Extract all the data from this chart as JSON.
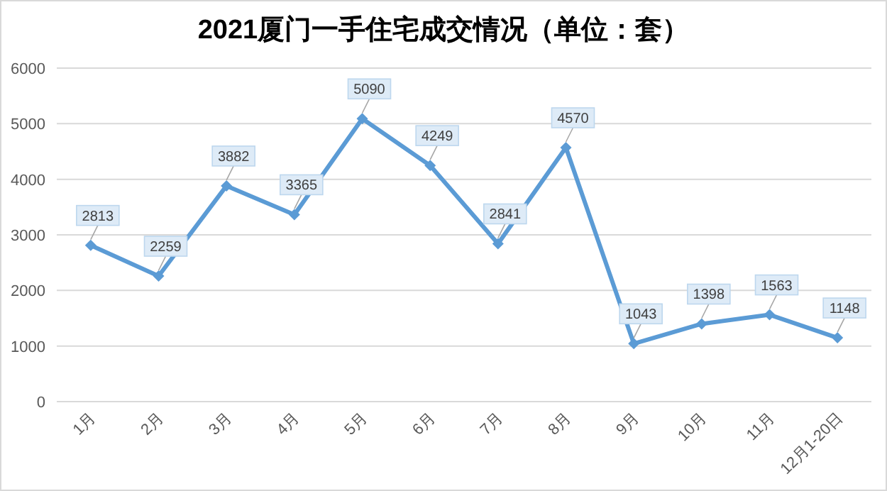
{
  "chart_data": {
    "type": "line",
    "title": "2021厦门一手住宅成交情况（单位：套）",
    "categories": [
      "1月",
      "2月",
      "3月",
      "4月",
      "5月",
      "6月",
      "7月",
      "8月",
      "9月",
      "10月",
      "11月",
      "12月1-20日"
    ],
    "series": [
      {
        "color": "#5b9bd5",
        "values": [
          2813,
          2259,
          3882,
          3365,
          5090,
          4249,
          2841,
          4570,
          1043,
          1398,
          1563,
          1148
        ]
      }
    ],
    "ylim": [
      0,
      6000
    ],
    "yticks": [
      0,
      1000,
      2000,
      3000,
      4000,
      5000,
      6000
    ],
    "grid": "y",
    "marker": "diamond",
    "line_style": "solid",
    "data_labels": true
  }
}
